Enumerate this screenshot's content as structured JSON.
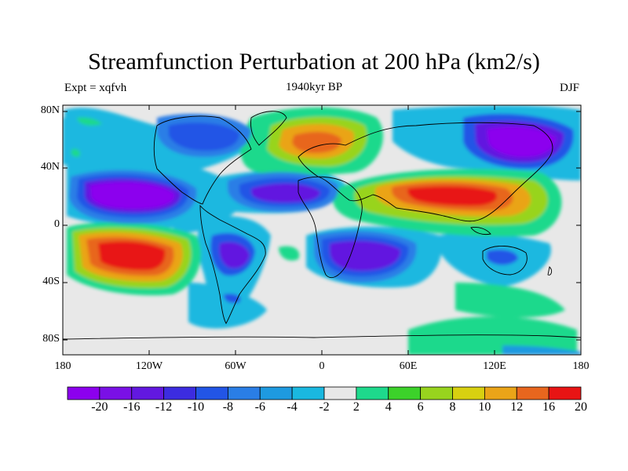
{
  "title": "Streamfunction Perturbation at 200 hPa (km2/s)",
  "left_label": "Expt = xqfvh",
  "center_label": "1940kyr BP",
  "right_label": "DJF",
  "lat_ticks": [
    "80N",
    "40N",
    "0",
    "40S",
    "80S"
  ],
  "lon_ticks": [
    "180",
    "120W",
    "60W",
    "0",
    "60E",
    "120E",
    "180"
  ],
  "colorbar": {
    "labels": [
      "-20",
      "-16",
      "-12",
      "-10",
      "-8",
      "-6",
      "-4",
      "-2",
      "2",
      "4",
      "6",
      "8",
      "10",
      "12",
      "16",
      "20"
    ],
    "colors": [
      "#8c00ee",
      "#7a10e6",
      "#6218e0",
      "#3c2ce0",
      "#2255e6",
      "#2a7ee6",
      "#1e9ae0",
      "#1ab8e0",
      "#e8e8e8",
      "#1ed98c",
      "#3cd22a",
      "#98d41e",
      "#d8d010",
      "#eaa418",
      "#e8661e",
      "#e81414"
    ]
  }
}
